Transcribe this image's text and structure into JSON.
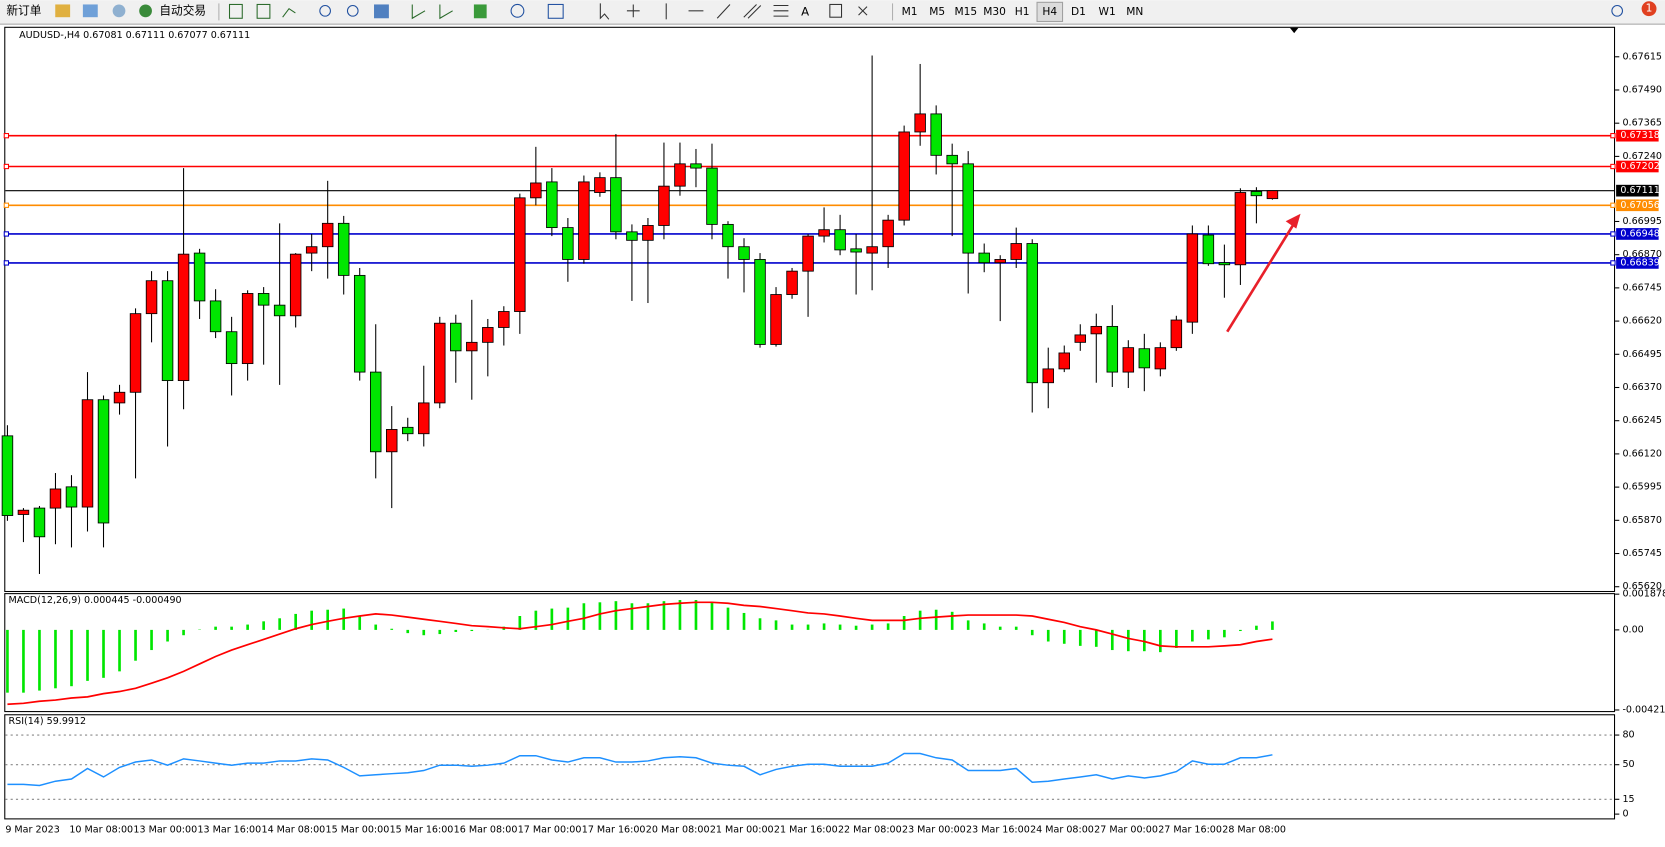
{
  "toolbar": {
    "buttons": [
      "新订单",
      "自动交易"
    ],
    "text_tool": "A",
    "timeframes": [
      "M1",
      "M5",
      "M15",
      "M30",
      "H1",
      "H4",
      "D1",
      "W1",
      "MN"
    ],
    "notifications": "1"
  },
  "chart_data": [
    {
      "type": "candlestick",
      "title": "AUDUSD-,H4  0.67081 0.67111 0.67077 0.67111",
      "categories": [
        "9 Mar 2023",
        null,
        null,
        null,
        "10 Mar 08:00",
        null,
        null,
        null,
        "13 Mar 00:00",
        null,
        null,
        null,
        "13 Mar 16:00",
        null,
        null,
        null,
        "14 Mar 08:00",
        null,
        null,
        null,
        "15 Mar 00:00",
        null,
        null,
        null,
        "15 Mar 16:00",
        null,
        null,
        null,
        "16 Mar 08:00",
        null,
        null,
        null,
        "17 Mar 00:00",
        null,
        null,
        null,
        "17 Mar 16:00",
        null,
        null,
        null,
        "20 Mar 08:00",
        null,
        null,
        null,
        "21 Mar 00:00",
        null,
        null,
        null,
        "21 Mar 16:00",
        null,
        null,
        null,
        "22 Mar 08:00",
        null,
        null,
        null,
        "23 Mar 00:00",
        null,
        null,
        null,
        "23 Mar 16:00",
        null,
        null,
        null,
        "24 Mar 08:00",
        null,
        null,
        null,
        "27 Mar 00:00",
        null,
        null,
        null,
        "27 Mar 16:00",
        null,
        null,
        null,
        "28 Mar 08:00",
        null,
        null,
        null
      ],
      "open": [
        0.66188,
        0.65892,
        0.65916,
        0.65916,
        0.65996,
        0.6592,
        0.66324,
        0.66312,
        0.66352,
        0.66648,
        0.66772,
        0.66396,
        0.66876,
        0.66696,
        0.6658,
        0.6646,
        0.66724,
        0.6668,
        0.6664,
        0.66876,
        0.669,
        0.66988,
        0.66792,
        0.66428,
        0.66128,
        0.6622,
        0.66196,
        0.66312,
        0.66612,
        0.66508,
        0.6654,
        0.66596,
        0.66656,
        0.67084,
        0.67144,
        0.66972,
        0.66852,
        0.67104,
        0.6716,
        0.66956,
        0.66924,
        0.6698,
        0.67128,
        0.67212,
        0.67196,
        0.66984,
        0.669,
        0.66852,
        0.66532,
        0.6672,
        0.66808,
        0.6694,
        0.66964,
        0.66892,
        0.66876,
        0.669,
        0.67,
        0.67332,
        0.674,
        0.67244,
        0.67212,
        0.66876,
        0.6684,
        0.66852,
        0.66912,
        0.66388,
        0.6644,
        0.6654,
        0.66572,
        0.666,
        0.66428,
        0.66516,
        0.6644,
        0.6652,
        0.66616,
        0.66944,
        0.6684,
        0.66832,
        0.67108,
        0.67081
      ],
      "high": [
        0.66228,
        0.65916,
        0.65924,
        0.66048,
        0.6604,
        0.66428,
        0.6634,
        0.6638,
        0.66668,
        0.66808,
        0.66808,
        0.67196,
        0.66892,
        0.6674,
        0.66636,
        0.66736,
        0.66748,
        0.66988,
        0.66876,
        0.66948,
        0.67148,
        0.67016,
        0.6682,
        0.66608,
        0.663,
        0.66256,
        0.66452,
        0.66636,
        0.66644,
        0.667,
        0.66628,
        0.66676,
        0.671,
        0.67276,
        0.67196,
        0.67008,
        0.67168,
        0.6718,
        0.67324,
        0.66984,
        0.67008,
        0.67292,
        0.67292,
        0.67268,
        0.67288,
        0.66996,
        0.66932,
        0.66876,
        0.66748,
        0.6682,
        0.66948,
        0.67048,
        0.6702,
        0.66948,
        0.6762,
        0.6702,
        0.67356,
        0.67588,
        0.67432,
        0.67288,
        0.6726,
        0.66912,
        0.66868,
        0.66972,
        0.66928,
        0.6652,
        0.66528,
        0.66608,
        0.66648,
        0.6668,
        0.66548,
        0.66572,
        0.6654,
        0.6664,
        0.6698,
        0.6698,
        0.66908,
        0.6712,
        0.67124,
        0.67111
      ],
      "low": [
        0.65868,
        0.65788,
        0.65668,
        0.6578,
        0.65768,
        0.65828,
        0.65768,
        0.66268,
        0.66028,
        0.6654,
        0.66148,
        0.66288,
        0.66628,
        0.66556,
        0.6634,
        0.66396,
        0.66456,
        0.6638,
        0.66596,
        0.66808,
        0.6678,
        0.6672,
        0.66396,
        0.66028,
        0.65916,
        0.66168,
        0.66148,
        0.66292,
        0.66388,
        0.66324,
        0.66412,
        0.66528,
        0.66572,
        0.67056,
        0.6694,
        0.66768,
        0.66836,
        0.67088,
        0.66928,
        0.66696,
        0.66688,
        0.66928,
        0.67092,
        0.67124,
        0.66928,
        0.6678,
        0.66728,
        0.6652,
        0.66524,
        0.66704,
        0.66636,
        0.66916,
        0.66868,
        0.6672,
        0.66736,
        0.6682,
        0.6698,
        0.6728,
        0.67172,
        0.6694,
        0.66724,
        0.66804,
        0.6662,
        0.6682,
        0.66276,
        0.66292,
        0.66428,
        0.66508,
        0.66388,
        0.66372,
        0.66368,
        0.66356,
        0.66412,
        0.66508,
        0.66572,
        0.66828,
        0.66708,
        0.66756,
        0.66988,
        0.67077
      ],
      "close": [
        0.65888,
        0.65908,
        0.65808,
        0.65988,
        0.6592,
        0.66324,
        0.6586,
        0.66352,
        0.66648,
        0.66772,
        0.66396,
        0.66872,
        0.66696,
        0.6658,
        0.6646,
        0.66724,
        0.6668,
        0.6664,
        0.66872,
        0.669,
        0.66988,
        0.66792,
        0.66428,
        0.66128,
        0.66212,
        0.66196,
        0.66312,
        0.66612,
        0.66508,
        0.6654,
        0.66596,
        0.66656,
        0.67084,
        0.6714,
        0.66972,
        0.66852,
        0.67144,
        0.6716,
        0.66956,
        0.66924,
        0.6698,
        0.67128,
        0.67212,
        0.67196,
        0.66984,
        0.669,
        0.66852,
        0.66532,
        0.6672,
        0.66808,
        0.6694,
        0.66964,
        0.66888,
        0.6688,
        0.669,
        0.67,
        0.67332,
        0.674,
        0.67244,
        0.67212,
        0.66876,
        0.6684,
        0.66852,
        0.66912,
        0.66388,
        0.6644,
        0.665,
        0.66568,
        0.666,
        0.66428,
        0.6652,
        0.66444,
        0.6652,
        0.66624,
        0.66948,
        0.66836,
        0.66832,
        0.67104,
        0.67092,
        0.67111
      ],
      "up_color": "#ff0000",
      "down_color": "#00e600",
      "ylim": [
        0.6561,
        0.6772
      ],
      "yticks": [
        0.67615,
        {
          "value": 0.6749,
          "label": "0.67490"
        },
        0.67365,
        {
          "value": 0.6724,
          "label": "0.67240"
        },
        0.66995,
        {
          "value": 0.6687,
          "label": "0.66870"
        },
        0.66745,
        {
          "value": 0.6662,
          "label": "0.66620"
        },
        0.66495,
        {
          "value": 0.6637,
          "label": "0.66370"
        },
        0.66245,
        {
          "value": 0.6612,
          "label": "0.66120"
        },
        0.65995,
        {
          "value": 0.6587,
          "label": "0.65870"
        },
        0.65745,
        {
          "value": 0.6562,
          "label": "0.65620"
        }
      ],
      "levels": [
        {
          "value": 0.67318,
          "color": "#ff0000"
        },
        {
          "value": 0.67202,
          "color": "#ff0000"
        },
        {
          "value": 0.67056,
          "color": "#ff8c00"
        },
        {
          "value": 0.66948,
          "color": "#0000cd"
        },
        {
          "value": 0.66839,
          "color": "#0000cd"
        }
      ],
      "last_price": 0.67111
    },
    {
      "type": "macd",
      "title": "MACD(12,26,9) 0.000445 -0.000490",
      "values": [
        -0.0033,
        -0.0033,
        -0.00319,
        -0.00307,
        -0.00296,
        -0.00268,
        -0.00252,
        -0.00218,
        -0.00162,
        -0.00106,
        -0.00061,
        -0.00028,
        2e-05,
        0.00017,
        0.00017,
        0.00028,
        0.00045,
        0.00061,
        0.00084,
        0.00101,
        0.00106,
        0.00112,
        0.00073,
        0.00028,
        6e-05,
        -0.00017,
        -0.00028,
        -0.00022,
        -0.00011,
        -6e-05,
        1e-05,
        0.00017,
        0.00073,
        0.00101,
        0.00112,
        0.00117,
        0.0014,
        0.00145,
        0.00151,
        0.0014,
        0.0014,
        0.00151,
        0.00157,
        0.00157,
        0.00145,
        0.00117,
        0.00089,
        0.00061,
        0.0005,
        0.00028,
        0.00028,
        0.00034,
        0.00028,
        0.00022,
        0.00028,
        0.00034,
        0.00073,
        0.00101,
        0.00106,
        0.00095,
        0.0005,
        0.00034,
        0.00017,
        0.00017,
        -0.00028,
        -0.00061,
        -0.00073,
        -0.00084,
        -0.00089,
        -0.00106,
        -0.00112,
        -0.00112,
        -0.00117,
        -0.00095,
        -0.00061,
        -0.0005,
        -0.00039,
        -6e-05,
        0.00022,
        0.000445
      ],
      "color": "#00e600",
      "signal": [
        -0.00391,
        -0.00386,
        -0.00375,
        -0.00369,
        -0.00358,
        -0.00352,
        -0.00335,
        -0.00324,
        -0.00307,
        -0.0028,
        -0.00252,
        -0.00218,
        -0.00179,
        -0.0014,
        -0.00106,
        -0.00078,
        -0.0005,
        -0.00022,
        6e-05,
        0.00028,
        0.00045,
        0.00061,
        0.00073,
        0.00084,
        0.00078,
        0.00067,
        0.00056,
        0.00045,
        0.00034,
        0.00022,
        0.00017,
        0.00011,
        6e-05,
        0.00017,
        0.00028,
        0.00045,
        0.00061,
        0.00084,
        0.00101,
        0.00112,
        0.00123,
        0.00134,
        0.0014,
        0.00145,
        0.00145,
        0.0014,
        0.00129,
        0.00123,
        0.00112,
        0.00101,
        0.00089,
        0.00084,
        0.00073,
        0.00061,
        0.0005,
        0.0005,
        0.0005,
        0.00061,
        0.00067,
        0.00073,
        0.00078,
        0.00078,
        0.00078,
        0.00078,
        0.00073,
        0.00056,
        0.00039,
        0.00017,
        0,
        -0.00022,
        -0.00045,
        -0.00061,
        -0.00084,
        -0.00089,
        -0.00089,
        -0.00089,
        -0.00084,
        -0.00078,
        -0.00061,
        -0.00049
      ],
      "signal_color": "#ff0000",
      "ylim": [
        -0.00421,
        0.001878
      ],
      "yticks": [
        0.001878,
        {
          "value": 0,
          "label": "0.00"
        },
        -0.00421
      ]
    },
    {
      "type": "rsi",
      "title": "RSI(14) 59.9912",
      "values": [
        30.1,
        30.1,
        29.0,
        33.3,
        35.5,
        46.2,
        37.6,
        47.3,
        52.7,
        54.8,
        49.5,
        55.9,
        53.8,
        51.6,
        49.5,
        51.6,
        51.6,
        53.8,
        53.8,
        55.9,
        54.8,
        47.3,
        38.7,
        39.8,
        40.9,
        41.9,
        44.1,
        49.5,
        49.5,
        48.4,
        49.5,
        51.6,
        59.1,
        59.1,
        54.8,
        52.7,
        57.0,
        57.0,
        52.7,
        52.7,
        53.8,
        57.0,
        58.1,
        57.0,
        51.6,
        49.5,
        48.4,
        39.8,
        45.2,
        48.4,
        50.5,
        50.5,
        48.4,
        48.4,
        48.4,
        51.6,
        61.3,
        61.3,
        57.0,
        54.8,
        44.1,
        44.1,
        44.1,
        46.2,
        32.3,
        33.3,
        35.5,
        37.6,
        39.8,
        35.5,
        38.7,
        36.6,
        38.7,
        43.0,
        53.8,
        50.5,
        50.5,
        57.0,
        57.0,
        59.9912
      ],
      "color": "#1e90ff",
      "ylim": [
        0,
        100
      ],
      "yticks": [
        80,
        50,
        15,
        0
      ]
    }
  ]
}
